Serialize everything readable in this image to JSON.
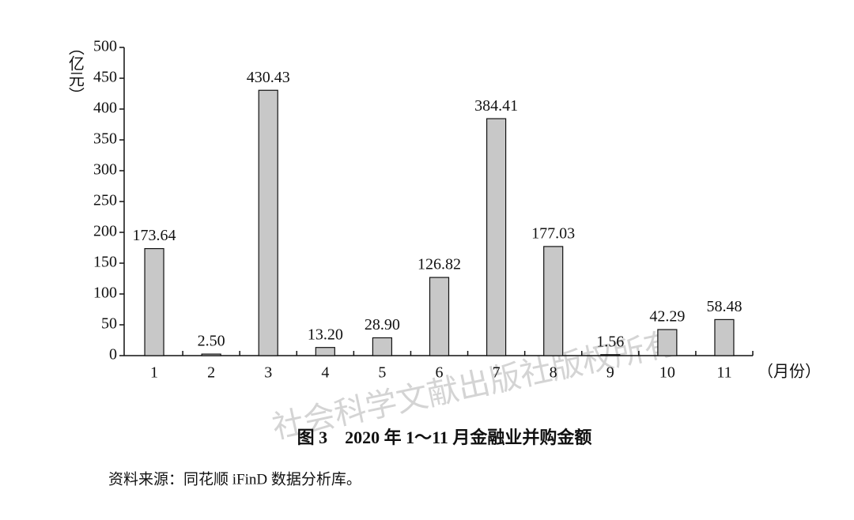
{
  "chart_data": {
    "type": "bar",
    "title": "图 3　2020 年 1～11 月金融业并购金额",
    "y_label": "（亿元）",
    "x_label": "（月份）",
    "source": "资料来源：同花顺 iFinD 数据分析库。",
    "watermark": "社会科学文献出版社版权所有",
    "categories": [
      "1",
      "2",
      "3",
      "4",
      "5",
      "6",
      "7",
      "8",
      "9",
      "10",
      "11"
    ],
    "values": [
      173.64,
      2.5,
      430.43,
      13.2,
      28.9,
      126.82,
      384.41,
      177.03,
      1.56,
      42.29,
      58.48
    ],
    "value_labels": [
      "173.64",
      "2.50",
      "430.43",
      "13.20",
      "28.90",
      "126.82",
      "384.41",
      "177.03",
      "1.56",
      "42.29",
      "58.48"
    ],
    "color": "#c8c8c8",
    "ylim": [
      0,
      500
    ],
    "yticks": [
      0,
      50,
      100,
      150,
      200,
      250,
      300,
      350,
      400,
      450,
      500
    ],
    "grid": false
  }
}
